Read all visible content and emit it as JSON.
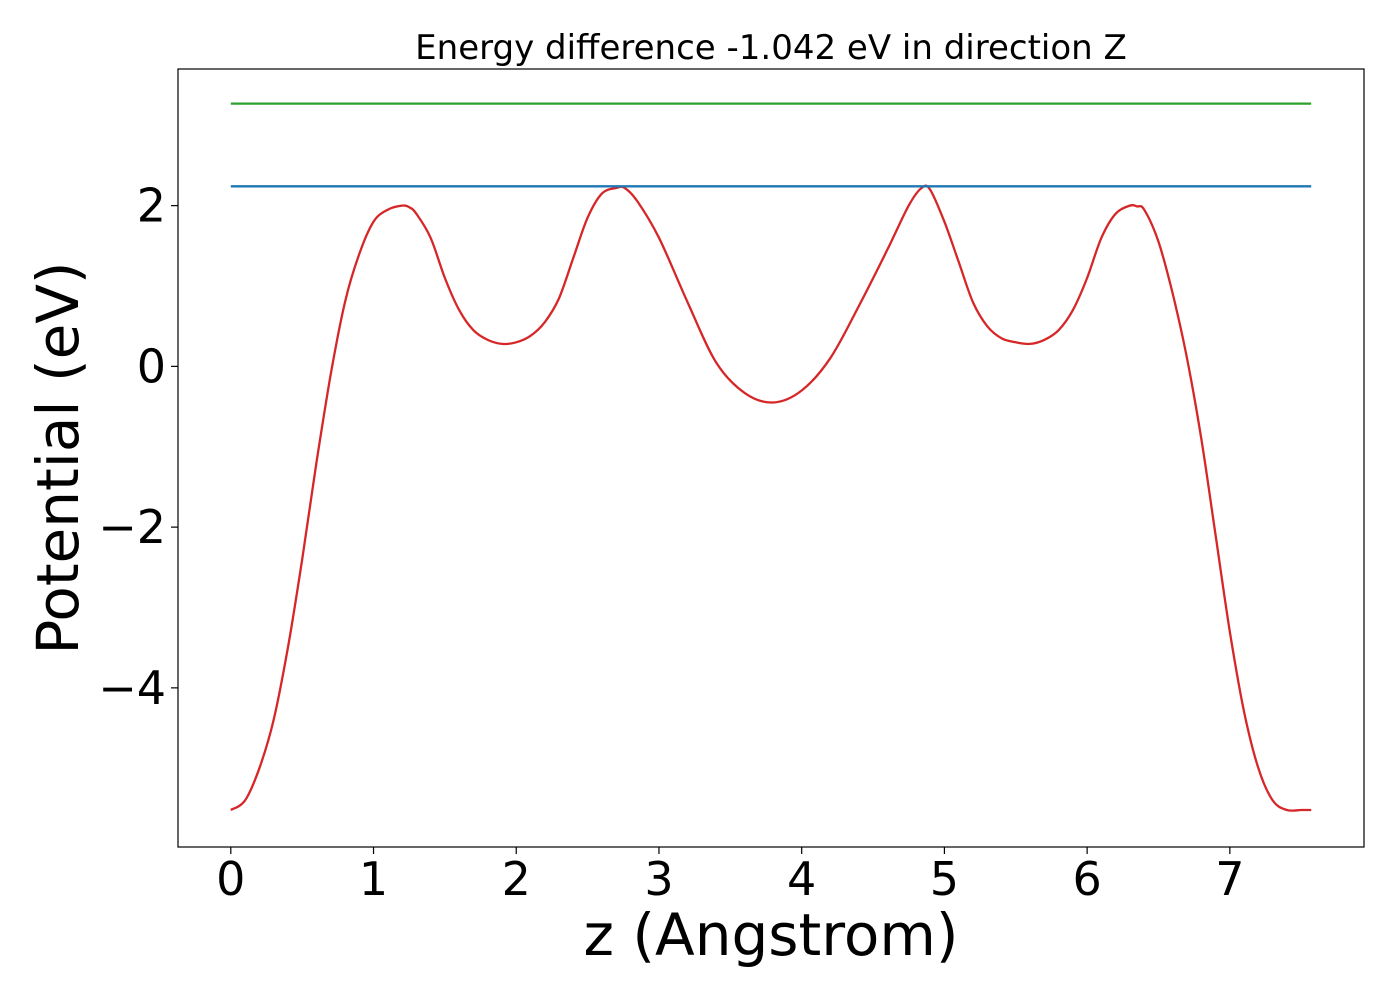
{
  "chart_data": {
    "type": "line",
    "title": "Energy difference -1.042 eV in direction Z",
    "xlabel": "z (Angstrom)",
    "ylabel": "Potential (eV)",
    "xlim": [
      -0.37,
      7.94
    ],
    "ylim": [
      -5.98,
      3.7
    ],
    "xticks": [
      0,
      1,
      2,
      3,
      4,
      5,
      6,
      7
    ],
    "xtick_labels": [
      "0",
      "1",
      "2",
      "3",
      "4",
      "5",
      "6",
      "7"
    ],
    "yticks": [
      -4,
      -2,
      0,
      2
    ],
    "ytick_labels": [
      "−4",
      "−2",
      "0",
      "2"
    ],
    "grid": false,
    "legend": "none",
    "series": [
      {
        "color": "#d62728",
        "x": [
          0.0,
          0.1,
          0.2,
          0.3,
          0.4,
          0.5,
          0.6,
          0.7,
          0.8,
          0.9,
          1.0,
          1.1,
          1.2,
          1.25,
          1.3,
          1.4,
          1.5,
          1.6,
          1.7,
          1.8,
          1.9,
          2.0,
          2.1,
          2.2,
          2.3,
          2.4,
          2.5,
          2.6,
          2.7,
          2.76,
          2.85,
          3.0,
          3.2,
          3.4,
          3.6,
          3.8,
          4.0,
          4.2,
          4.4,
          4.6,
          4.75,
          4.84,
          4.9,
          5.0,
          5.1,
          5.2,
          5.3,
          5.4,
          5.5,
          5.6,
          5.7,
          5.8,
          5.9,
          6.0,
          6.1,
          6.2,
          6.3,
          6.35,
          6.4,
          6.5,
          6.6,
          6.7,
          6.8,
          6.9,
          7.0,
          7.1,
          7.2,
          7.3,
          7.4,
          7.5,
          7.57
        ],
        "y": [
          -5.52,
          -5.4,
          -5.0,
          -4.4,
          -3.5,
          -2.4,
          -1.2,
          -0.1,
          0.8,
          1.4,
          1.8,
          1.95,
          2.0,
          1.98,
          1.9,
          1.6,
          1.1,
          0.7,
          0.45,
          0.33,
          0.28,
          0.3,
          0.38,
          0.55,
          0.85,
          1.35,
          1.85,
          2.15,
          2.22,
          2.22,
          2.05,
          1.6,
          0.8,
          0.05,
          -0.33,
          -0.45,
          -0.3,
          0.1,
          0.75,
          1.45,
          2.0,
          2.22,
          2.2,
          1.8,
          1.3,
          0.8,
          0.5,
          0.35,
          0.3,
          0.28,
          0.33,
          0.45,
          0.7,
          1.1,
          1.6,
          1.9,
          2.0,
          1.99,
          1.95,
          1.55,
          0.9,
          0.1,
          -0.9,
          -2.1,
          -3.3,
          -4.3,
          -5.0,
          -5.4,
          -5.52,
          -5.52,
          -5.52
        ]
      },
      {
        "color": "#1f77b4",
        "x": [
          0.0,
          7.57
        ],
        "y": [
          2.24,
          2.24
        ]
      },
      {
        "color": "#2ca02c",
        "x": [
          0.0,
          7.57
        ],
        "y": [
          3.27,
          3.27
        ]
      }
    ]
  }
}
